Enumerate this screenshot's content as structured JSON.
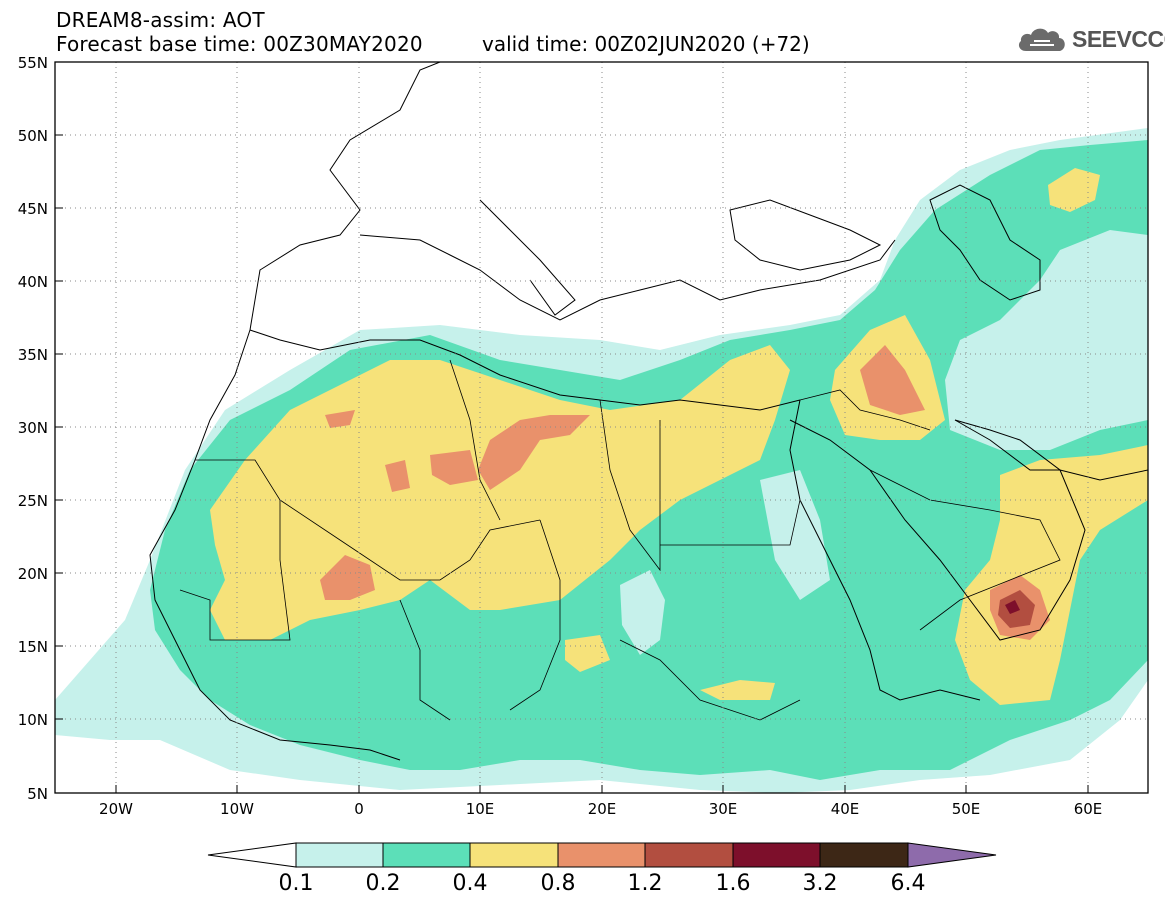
{
  "header": {
    "title_line1": "DREAM8-assim: AOT",
    "title_line2": "Forecast base time: 00Z30MAY2020",
    "valid_time": "valid time: 00Z02JUN2020 (+72)"
  },
  "logo": {
    "text": "SEEVCCC",
    "icon": "cloud-icon"
  },
  "map": {
    "lon_range": [
      -25,
      65
    ],
    "lat_range": [
      5,
      55
    ],
    "lat_labels": [
      "55N",
      "50N",
      "45N",
      "40N",
      "35N",
      "30N",
      "25N",
      "20N",
      "15N",
      "10N",
      "5N"
    ],
    "lon_labels": [
      "20W",
      "10W",
      "0",
      "10E",
      "20E",
      "30E",
      "40E",
      "50E",
      "60E"
    ],
    "grid": "dotted"
  },
  "colorbar": {
    "thresholds": [
      "0.1",
      "0.2",
      "0.4",
      "0.8",
      "1.2",
      "1.6",
      "3.2",
      "6.4"
    ],
    "colors": [
      "#ffffff",
      "#c6f1eb",
      "#5cdfb8",
      "#f6e27a",
      "#e9916b",
      "#b24e40",
      "#7d0f2b",
      "#3d2716",
      "#8e6bab"
    ]
  }
}
